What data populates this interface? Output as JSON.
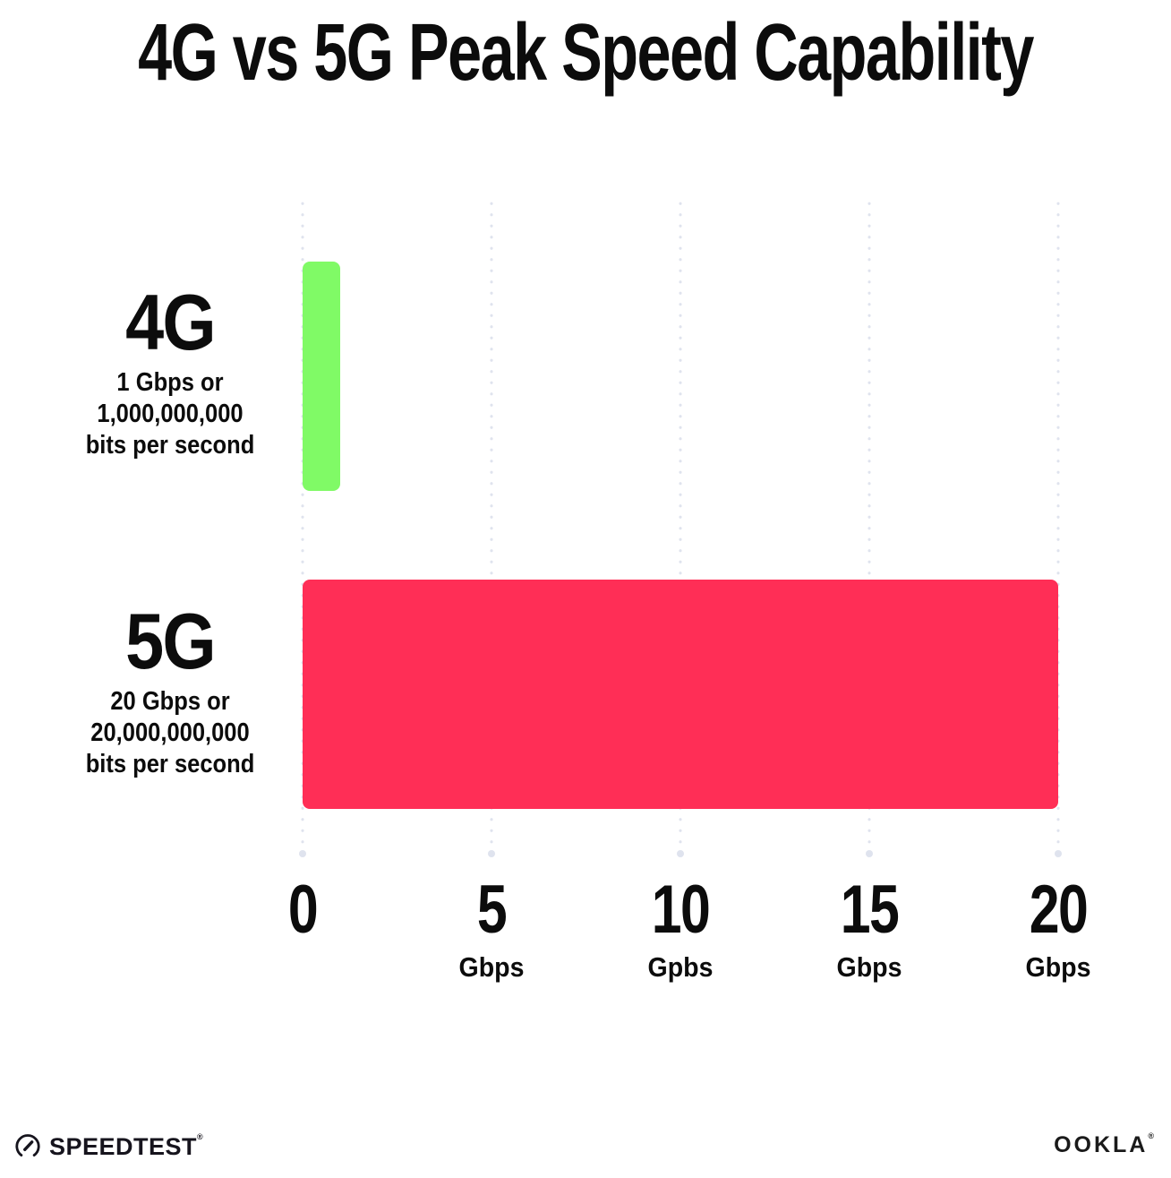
{
  "title": "4G vs 5G Peak Speed Capability",
  "chart_data": {
    "type": "bar",
    "orientation": "horizontal",
    "title": "4G vs 5G Peak Speed Capability",
    "xlabel": "Gbps",
    "xlim": [
      0,
      20
    ],
    "grid": "dotted vertical gridlines at each x tick",
    "legend": "none",
    "categories": [
      "4G",
      "5G"
    ],
    "values": [
      1,
      20
    ],
    "rows": [
      {
        "name": "4G",
        "value": 1,
        "color": "#80FA66",
        "sub_lines": [
          "1 Gbps or",
          "1,000,000,000",
          "bits per second"
        ]
      },
      {
        "name": "5G",
        "value": 20,
        "color": "#FF2E56",
        "sub_lines": [
          "20 Gbps or",
          "20,000,000,000",
          "bits per second"
        ]
      }
    ],
    "x_ticks": [
      {
        "value": 0,
        "label": "0",
        "unit": ""
      },
      {
        "value": 5,
        "label": "5",
        "unit": "Gbps"
      },
      {
        "value": 10,
        "label": "10",
        "unit": "Gpbs"
      },
      {
        "value": 15,
        "label": "15",
        "unit": "Gbps"
      },
      {
        "value": 20,
        "label": "20",
        "unit": "Gbps"
      }
    ]
  },
  "footer": {
    "speedtest_label": "SPEEDTEST",
    "speedtest_mark": "®",
    "ookla_label": "OOKLA",
    "ookla_mark": "®"
  },
  "colors": {
    "bar_4g": "#80FA66",
    "bar_5g": "#FF2E56",
    "grid_dot": "#DFE3EE",
    "text": "#0C0C0C",
    "background": "#FFFFFF"
  }
}
